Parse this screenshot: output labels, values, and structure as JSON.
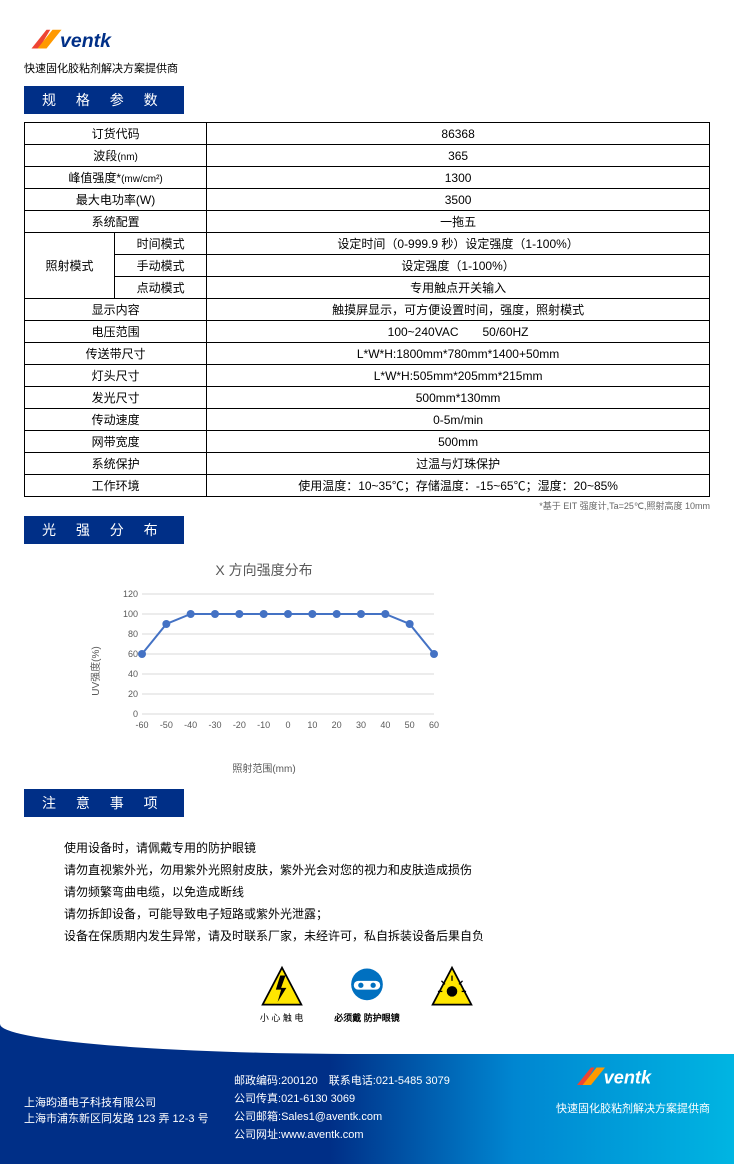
{
  "brand": {
    "name": "Aventk",
    "tagline": "快速固化胶粘剂解决方案提供商",
    "colors": {
      "primary": "#002f87",
      "accent1": "#0086d1",
      "accent2": "#00b5e2",
      "logo_red": "#e43",
      "logo_orange": "#f90"
    }
  },
  "sections": {
    "specs": "规 格 参 数",
    "distribution": "光 强 分 布",
    "notes": "注 意 事 项"
  },
  "spec_table": {
    "rows": {
      "order_code": {
        "label": "订货代码",
        "value": "86368"
      },
      "waveband": {
        "label": "波段",
        "unit": "(nm)",
        "value": "365"
      },
      "peak": {
        "label": "峰值强度*",
        "unit": "(mw/cm²)",
        "value": "1300"
      },
      "power": {
        "label": "最大电功率(W)",
        "value": "3500"
      },
      "config": {
        "label": "系统配置",
        "value": "一拖五"
      },
      "mode": {
        "group_label": "照射模式",
        "time": {
          "label": "时间模式",
          "value": "设定时间（0-999.9 秒）设定强度（1-100%）"
        },
        "manual": {
          "label": "手动模式",
          "value": "设定强度（1-100%）"
        },
        "jog": {
          "label": "点动模式",
          "value": "专用触点开关输入"
        }
      },
      "display": {
        "label": "显示内容",
        "value": "触摸屏显示，可方便设置时间，强度，照射模式"
      },
      "voltage": {
        "label": "电压范围",
        "value": "100~240VAC　　50/60HZ"
      },
      "belt_dim": {
        "label": "传送带尺寸",
        "value": "L*W*H:1800mm*780mm*1400+50mm"
      },
      "head_dim": {
        "label": "灯头尺寸",
        "value": "L*W*H:505mm*205mm*215mm"
      },
      "emit_dim": {
        "label": "发光尺寸",
        "value": "500mm*130mm"
      },
      "speed": {
        "label": "传动速度",
        "value": "0-5m/min"
      },
      "mesh": {
        "label": "网带宽度",
        "value": "500mm"
      },
      "protect": {
        "label": "系统保护",
        "value": "过温与灯珠保护"
      },
      "env": {
        "label": "工作环境",
        "value": "使用温度：10~35℃；存储温度：-15~65℃；湿度：20~85%"
      }
    },
    "footnote": "*基于 EIT 强度计,Ta=25℃,照射高度 10mm"
  },
  "chart": {
    "title": "X 方向强度分布",
    "xlabel": "照射范围(mm)",
    "ylabel": "UV强度(%)",
    "type": "line",
    "x_values": [
      -60,
      -50,
      -40,
      -30,
      -20,
      -10,
      0,
      10,
      20,
      30,
      40,
      50,
      60
    ],
    "y_values": [
      60,
      90,
      100,
      100,
      100,
      100,
      100,
      100,
      100,
      100,
      100,
      90,
      60
    ],
    "ylim": [
      0,
      120
    ],
    "ytick_step": 20,
    "xlim": [
      -60,
      60
    ],
    "xtick_step": 10,
    "line_color": "#4472c4",
    "marker_color": "#4472c4",
    "marker": "circle",
    "marker_size": 4,
    "line_width": 2,
    "grid_color": "#d9d9d9",
    "background_color": "#ffffff",
    "tick_fontsize": 9,
    "label_fontsize": 10,
    "tick_color": "#595959"
  },
  "notes": {
    "l1": "使用设备时，请佩戴专用的防护眼镜",
    "l2": "请勿直视紫外光，勿用紫外光照射皮肤，紫外光会对您的视力和皮肤造成损伤",
    "l3": "请勿频繁弯曲电缆，以免造成断线",
    "l4": "请勿拆卸设备，可能导致电子短路或紫外光泄露；",
    "l5": "设备在保质期内发生异常，请及时联系厂家，未经许可，私自拆装设备后果自负"
  },
  "warnings": {
    "shock": "小 心 触 电",
    "goggles": "必须戴 防护眼镜",
    "uv": ""
  },
  "footer": {
    "company": "上海昀通电子科技有限公司",
    "address": "上海市浦东新区同发路 123 弄 12-3 号",
    "postcode_label": "邮政编码:",
    "postcode": "200120",
    "tel_label": "联系电话:",
    "tel": "021-5485 3079",
    "fax_label": "公司传真:",
    "fax": "021-6130 3069",
    "email_label": "公司邮箱:",
    "email": "Sales1@aventk.com",
    "web_label": "公司网址:",
    "web": "www.aventk.com",
    "tagline": "快速固化胶粘剂解决方案提供商"
  }
}
